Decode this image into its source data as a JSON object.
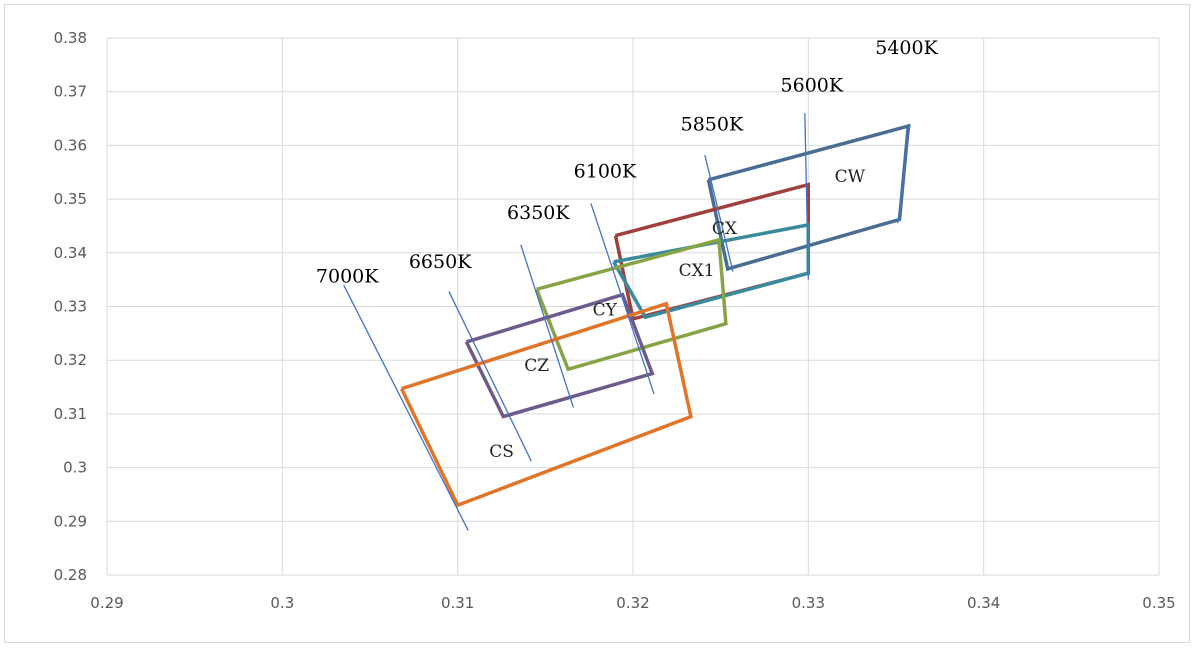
{
  "chart_data": {
    "type": "line",
    "title": "",
    "xlabel": "",
    "ylabel": "",
    "xlim": [
      0.29,
      0.35
    ],
    "ylim": [
      0.28,
      0.38
    ],
    "x_ticks": [
      "0.29",
      "0.3",
      "0.31",
      "0.32",
      "0.33",
      "0.34",
      "0.35"
    ],
    "y_ticks": [
      "0.28",
      "0.29",
      "0.3",
      "0.31",
      "0.32",
      "0.33",
      "0.34",
      "0.35",
      "0.36",
      "0.37",
      "0.38"
    ],
    "grid": "vertical-and-horizontal",
    "series": [
      {
        "label": "CW",
        "color": "#4a6d93",
        "points": [
          [
            0.3243,
            0.3536
          ],
          [
            0.3357,
            0.3636
          ],
          [
            0.3352,
            0.3462
          ],
          [
            0.3254,
            0.337
          ],
          [
            0.3243,
            0.3536
          ]
        ]
      },
      {
        "label": "CX",
        "color": "#a0403c",
        "points": [
          [
            0.319,
            0.3432
          ],
          [
            0.33,
            0.3527
          ],
          [
            0.33,
            0.3362
          ],
          [
            0.32,
            0.3277
          ],
          [
            0.319,
            0.3432
          ]
        ]
      },
      {
        "label": "CX1",
        "color": "#3a8a9e",
        "points": [
          [
            0.3189,
            0.3383
          ],
          [
            0.33,
            0.3452
          ],
          [
            0.33,
            0.3362
          ],
          [
            0.3207,
            0.328
          ],
          [
            0.3189,
            0.3383
          ]
        ]
      },
      {
        "label": "CY",
        "color": "#86a346",
        "points": [
          [
            0.3145,
            0.3332
          ],
          [
            0.3249,
            0.3424
          ],
          [
            0.3253,
            0.3268
          ],
          [
            0.3163,
            0.3183
          ],
          [
            0.3145,
            0.3332
          ]
        ]
      },
      {
        "label": "CZ",
        "color": "#6e5b8e",
        "points": [
          [
            0.3105,
            0.3234
          ],
          [
            0.3194,
            0.3322
          ],
          [
            0.3211,
            0.3175
          ],
          [
            0.3126,
            0.3095
          ],
          [
            0.3105,
            0.3234
          ]
        ]
      },
      {
        "label": "CS",
        "color": "#e07428",
        "points": [
          [
            0.3068,
            0.3147
          ],
          [
            0.3219,
            0.3305
          ],
          [
            0.3233,
            0.3095
          ],
          [
            0.31,
            0.293
          ],
          [
            0.3068,
            0.3147
          ]
        ]
      }
    ],
    "iso_lines": [
      {
        "label": "5400K",
        "points": [
          [
            0.3358,
            0.364
          ],
          [
            0.3351,
            0.3455
          ]
        ]
      },
      {
        "label": "5600K",
        "points": [
          [
            0.3298,
            0.366
          ],
          [
            0.33,
            0.335
          ]
        ]
      },
      {
        "label": "5850K",
        "points": [
          [
            0.3241,
            0.3582
          ],
          [
            0.3257,
            0.3365
          ]
        ]
      },
      {
        "label": "6100K",
        "points": [
          [
            0.3176,
            0.3492
          ],
          [
            0.3212,
            0.3137
          ]
        ]
      },
      {
        "label": "6350K",
        "points": [
          [
            0.3136,
            0.3415
          ],
          [
            0.3166,
            0.3112
          ]
        ]
      },
      {
        "label": "6650K",
        "points": [
          [
            0.3095,
            0.3328
          ],
          [
            0.3142,
            0.3012
          ]
        ]
      },
      {
        "label": "7000K",
        "points": [
          [
            0.3035,
            0.334
          ],
          [
            0.3106,
            0.2883
          ]
        ]
      }
    ],
    "zone_labels": [
      {
        "label": "CW",
        "x": 0.3315,
        "y": 0.3532
      },
      {
        "label": "CX",
        "x": 0.3245,
        "y": 0.3435
      },
      {
        "label": "CX1",
        "x": 0.3226,
        "y": 0.3357
      },
      {
        "label": "CY",
        "x": 0.3177,
        "y": 0.3283
      },
      {
        "label": "CZ",
        "x": 0.3138,
        "y": 0.318
      },
      {
        "label": "CS",
        "x": 0.3118,
        "y": 0.302
      }
    ],
    "iso_label_positions": [
      {
        "label": "5400K",
        "x": 0.3356,
        "y": 0.377
      },
      {
        "label": "5600K",
        "x": 0.3302,
        "y": 0.37
      },
      {
        "label": "5850K",
        "x": 0.3245,
        "y": 0.3628
      },
      {
        "label": "6100K",
        "x": 0.3184,
        "y": 0.354
      },
      {
        "label": "6350K",
        "x": 0.3146,
        "y": 0.3463
      },
      {
        "label": "6650K",
        "x": 0.309,
        "y": 0.3372
      },
      {
        "label": "7000K",
        "x": 0.3037,
        "y": 0.3345
      }
    ]
  }
}
